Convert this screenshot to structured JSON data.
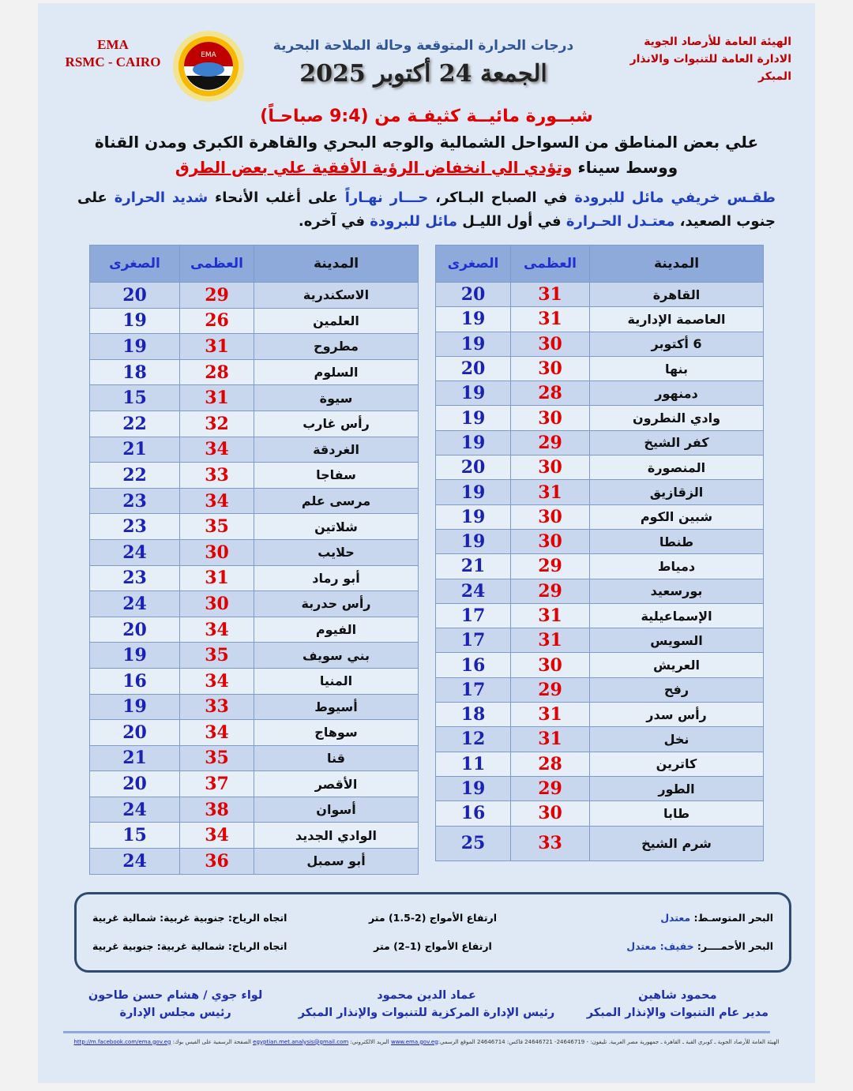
{
  "header": {
    "ema": "EMA",
    "rsmc": "RSMC - CAIRO",
    "logo_text": "EMA",
    "org_line1": "الهيئة العامة للأرصاد الجوية",
    "org_line2": "الادارة العامة للتنبوات والانذار المبكر",
    "title": "درجات الحرارة المتوقعة وحالة الملاحة البحرية",
    "date": "الجمعة 24 أكتوبر 2025"
  },
  "alert": {
    "headline": "شبــورة مائيــة كثيفـة من (9:4 صباحـاً)",
    "line1": "علي بعض المناطق من السواحل الشمالية والوجه البحري والقاهرة الكبرى ومدن القناة",
    "line2_a": "ووسط سيناء ",
    "line2_b": "وتؤدي الي انخفاض الرؤية الأفقية علي بعض الطرق"
  },
  "forecast": {
    "p1": "طقـس خريفي مائل للبرودة",
    "p2": " في الصباح البـاكر، ",
    "p3": "حـــار نهـاراً",
    "p4": " على أغلب الأنحاء ",
    "p5": "شديد الحرارة",
    "p6": " على جنوب الصعيد، ",
    "p7": "معتـدل الحـرارة",
    "p8": " في أول الليـل ",
    "p9": "مائل للبرودة",
    "p10": " في آخره."
  },
  "table_headers": {
    "city": "المدينة",
    "max": "العظمى",
    "min": "الصغرى"
  },
  "table_right": [
    [
      "القاهرة",
      31,
      20
    ],
    [
      "العاصمة الإدارية",
      31,
      19
    ],
    [
      "6 أكتوبر",
      30,
      19
    ],
    [
      "بنها",
      30,
      20
    ],
    [
      "دمنهور",
      28,
      19
    ],
    [
      "وادي النطرون",
      30,
      19
    ],
    [
      "كفر الشيخ",
      29,
      19
    ],
    [
      "المنصورة",
      30,
      20
    ],
    [
      "الزقازيق",
      31,
      19
    ],
    [
      "شبين الكوم",
      30,
      19
    ],
    [
      "طنطا",
      30,
      19
    ],
    [
      "دمياط",
      29,
      21
    ],
    [
      "بورسعيد",
      29,
      24
    ],
    [
      "الإسماعيلية",
      31,
      17
    ],
    [
      "السويس",
      31,
      17
    ],
    [
      "العريش",
      30,
      16
    ],
    [
      "رفح",
      29,
      17
    ],
    [
      "رأس سدر",
      31,
      18
    ],
    [
      "نخل",
      31,
      12
    ],
    [
      "كاترين",
      28,
      11
    ],
    [
      "الطور",
      29,
      19
    ],
    [
      "طابا",
      30,
      16
    ],
    [
      "شرم الشيخ",
      33,
      25
    ]
  ],
  "table_left": [
    [
      "الاسكندرية",
      29,
      20
    ],
    [
      "العلمين",
      26,
      19
    ],
    [
      "مطروح",
      31,
      19
    ],
    [
      "السلوم",
      28,
      18
    ],
    [
      "سيوة",
      31,
      15
    ],
    [
      "رأس غارب",
      32,
      22
    ],
    [
      "الغردقة",
      34,
      21
    ],
    [
      "سفاجا",
      33,
      22
    ],
    [
      "مرسى علم",
      34,
      23
    ],
    [
      "شلاتين",
      35,
      23
    ],
    [
      "حلايب",
      30,
      24
    ],
    [
      "أبو رماد",
      31,
      23
    ],
    [
      "رأس حدربة",
      30,
      24
    ],
    [
      "الفيوم",
      34,
      20
    ],
    [
      "بني سويف",
      35,
      19
    ],
    [
      "المنيا",
      34,
      16
    ],
    [
      "أسيوط",
      33,
      19
    ],
    [
      "سوهاج",
      34,
      20
    ],
    [
      "قنا",
      35,
      21
    ],
    [
      "الأقصر",
      37,
      20
    ],
    [
      "أسوان",
      38,
      24
    ],
    [
      "الوادي الجديد",
      34,
      15
    ],
    [
      "أبو سمبل",
      36,
      24
    ]
  ],
  "sea": {
    "med_label": "البحر المتوسـط: ",
    "med_state": "معتدل",
    "med_waves": "ارتفاع الأمواج (2-1.5) متر",
    "med_wind": "اتجاه الرياح: جنوبية غربية: شمالية غربية",
    "red_label": "البحر الأحمــــر: ",
    "red_state": "خفيف:  معتدل",
    "red_waves": "ارتفاع الأمواج (1–2) متر",
    "red_wind": "اتجاه الرياح: شمالية غربية: جنوبية غربية"
  },
  "signatures": [
    {
      "name": "محمود شاهين",
      "title": "مدير عام التنبوات والإنذار المبكر"
    },
    {
      "name": "عماد الدين محمود",
      "title": "رئيس الإدارة المركزية للتنبوات والإنذار المبكر"
    },
    {
      "name": "لواء جوي / هشام حسن طاحون",
      "title": "رئيس مجلس الإدارة"
    }
  ],
  "footer": {
    "address": "الهيئة العامة للأرصاد الجوية ـ كوبري القبة ـ القاهرة ـ جمهورية مصر العربية. تليفون: - 24646719- 24646721 فاكس: 24646714 الموقع الرسمي:",
    "website": "www.ema.gov.eg",
    "email_label": " البريد الالكتروني: ",
    "email": "egyptian.met.analysis@gmail.com",
    "fb_label": " الصفحة الرسمية على الفيس بوك: ",
    "facebook": "http://m.facebook.com/ema.gov.eg"
  },
  "colors": {
    "max": "#e00000",
    "min": "#1a22b5",
    "header": "#8eaadb",
    "page": "#dfe9f5"
  }
}
